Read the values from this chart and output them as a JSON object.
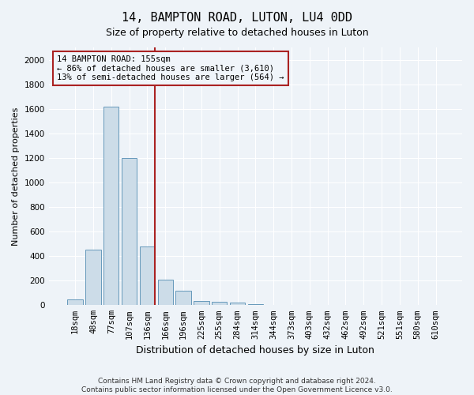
{
  "title": "14, BAMPTON ROAD, LUTON, LU4 0DD",
  "subtitle": "Size of property relative to detached houses in Luton",
  "xlabel": "Distribution of detached houses by size in Luton",
  "ylabel": "Number of detached properties",
  "footer1": "Contains HM Land Registry data © Crown copyright and database right 2024.",
  "footer2": "Contains public sector information licensed under the Open Government Licence v3.0.",
  "bar_labels": [
    "18sqm",
    "48sqm",
    "77sqm",
    "107sqm",
    "136sqm",
    "166sqm",
    "196sqm",
    "225sqm",
    "255sqm",
    "284sqm",
    "314sqm",
    "344sqm",
    "373sqm",
    "403sqm",
    "432sqm",
    "462sqm",
    "492sqm",
    "521sqm",
    "551sqm",
    "580sqm",
    "610sqm"
  ],
  "bar_values": [
    50,
    450,
    1620,
    1200,
    480,
    210,
    120,
    35,
    25,
    20,
    8,
    3,
    1,
    1,
    0,
    0,
    0,
    0,
    0,
    0,
    0
  ],
  "bar_color": "#ccdce8",
  "bar_edgecolor": "#6699bb",
  "ylim": [
    0,
    2100
  ],
  "yticks": [
    0,
    200,
    400,
    600,
    800,
    1000,
    1200,
    1400,
    1600,
    1800,
    2000
  ],
  "vline_x": 4.42,
  "vline_color": "#aa2222",
  "annotation_text": "14 BAMPTON ROAD: 155sqm\n← 86% of detached houses are smaller (3,610)\n13% of semi-detached houses are larger (564) →",
  "annotation_box_facecolor": "#f0f5fa",
  "annotation_box_edgecolor": "#aa2222",
  "background_color": "#eef3f8",
  "grid_color": "#ffffff",
  "title_fontsize": 11,
  "subtitle_fontsize": 9,
  "ylabel_fontsize": 8,
  "xlabel_fontsize": 9,
  "tick_fontsize": 7.5,
  "annotation_fontsize": 7.5,
  "footer_fontsize": 6.5
}
